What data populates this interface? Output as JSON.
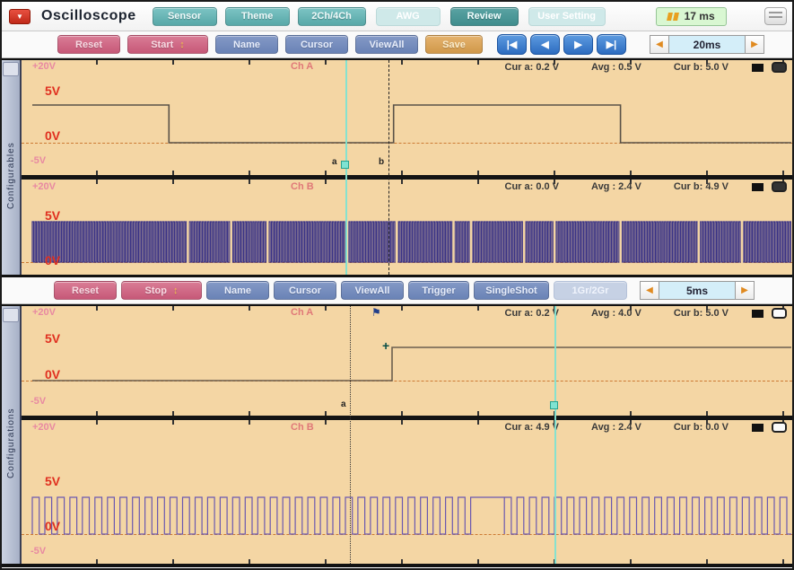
{
  "window": {
    "title": "Oscilloscope"
  },
  "icons": {
    "app_menu": "▼",
    "spinner": "↕",
    "media_first": "|◀",
    "media_prev": "◀",
    "media_next": "▶",
    "media_last": "▶|",
    "tb_left": "◀",
    "tb_right": "▶",
    "trigger_flag": "⚑",
    "trigger_cross": "+"
  },
  "toolbar_top": {
    "buttons": [
      {
        "label": "Sensor",
        "state": "normal"
      },
      {
        "label": "Theme",
        "state": "normal"
      },
      {
        "label": "2Ch/4Ch",
        "state": "normal"
      },
      {
        "label": "AWG",
        "state": "disabled"
      },
      {
        "label": "Review",
        "state": "selected"
      },
      {
        "label": "User Setting",
        "state": "disabled"
      }
    ],
    "acq_time": "17 ms"
  },
  "toolbar_scope1": {
    "buttons": [
      {
        "label": "Reset",
        "style": "pink"
      },
      {
        "label": "Start",
        "style": "pink",
        "spinner": true
      },
      {
        "label": "Name",
        "style": "blue"
      },
      {
        "label": "Cursor",
        "style": "blue"
      },
      {
        "label": "ViewAll",
        "style": "blue"
      },
      {
        "label": "Save",
        "style": "orange"
      }
    ],
    "timebase": "20ms"
  },
  "toolbar_scope2": {
    "buttons": [
      {
        "label": "Reset",
        "style": "pink"
      },
      {
        "label": "Stop",
        "style": "pink",
        "spinner": true
      },
      {
        "label": "Name",
        "style": "blue"
      },
      {
        "label": "Cursor",
        "style": "blue"
      },
      {
        "label": "ViewAll",
        "style": "blue"
      },
      {
        "label": "Trigger",
        "style": "blue"
      },
      {
        "label": "SingleShot",
        "style": "blue"
      },
      {
        "label": "1Gr/2Gr",
        "style": "disabled"
      }
    ],
    "timebase": "5ms"
  },
  "scope1": {
    "sidebar_label": "Configurables",
    "chA": {
      "name": "Ch A",
      "v_top": "+20V",
      "v5": "5V",
      "v0": "0V",
      "v_neg": "-5V",
      "cur_a": "Cur a: 0.2 V",
      "avg": "Avg : 0.5 V",
      "cur_b": "Cur b: 5.0 V"
    },
    "chB": {
      "name": "Ch B",
      "v_top": "+20V",
      "v5": "5V",
      "v0": "0V",
      "cur_a": "Cur a: 0.0 V",
      "avg": "Avg : 2.4 V",
      "cur_b": "Cur b: 4.9 V"
    },
    "cursor_a_label": "a",
    "cursor_b_label": "b"
  },
  "scope2": {
    "sidebar_label": "Configurations",
    "chA": {
      "name": "Ch A",
      "v_top": "+20V",
      "v5": "5V",
      "v0": "0V",
      "v_neg": "-5V",
      "cur_a": "Cur a: 0.2 V",
      "avg": "Avg : 4.0 V",
      "cur_b": "Cur b: 5.0 V"
    },
    "chB": {
      "name": "Ch B",
      "v_top": "+20V",
      "v5": "5V",
      "v0": "0V",
      "v_neg": "-5V",
      "cur_a": "Cur a: 4.9 V",
      "avg": "Avg : 2.4 V",
      "cur_b": "Cur b: 0.0 V"
    },
    "cursor_a_label": "a"
  },
  "colors": {
    "plot_bg": "#f4d6a4",
    "teal_cursor": "#7fe3d2",
    "accent_pink": "#cb5f7f",
    "accent_blue": "#6e87ba",
    "accent_teal": "#58a8a8",
    "accent_orange": "#d0984a",
    "badge_bg": "#d9f7d2",
    "wave_chA": "#5a5248",
    "wave_chB": "#3a3386"
  },
  "chart_data": [
    {
      "panel": 1,
      "channel": "Ch A",
      "type": "square",
      "unit": "V",
      "timebase": "20ms",
      "v_high": 5,
      "v_low": 0,
      "edges": [
        {
          "t": 0.0,
          "v": 5
        },
        {
          "t": 0.18,
          "v": 0
        },
        {
          "t": 0.476,
          "v": 5
        },
        {
          "t": 0.775,
          "v": 0
        }
      ],
      "cursors": {
        "a_frac": 0.415,
        "b_frac": 0.472,
        "a_val": 0.2,
        "b_val": 5.0
      },
      "avg": 0.5,
      "color": "#5a5248"
    },
    {
      "panel": 1,
      "channel": "Ch B",
      "type": "pwm",
      "unit": "V",
      "timebase": "20ms",
      "v_high": 5,
      "v_low": 0,
      "period_frac": 0.0035,
      "duty": 0.5,
      "dropouts": [
        0.205,
        0.262,
        0.31,
        0.415,
        0.48,
        0.555,
        0.578,
        0.648,
        0.688,
        0.775,
        0.878,
        0.935
      ],
      "cursors": {
        "a_val": 0.0,
        "b_val": 4.9
      },
      "avg": 2.4,
      "color": "#3a3386"
    },
    {
      "panel": 2,
      "channel": "Ch A",
      "type": "square",
      "unit": "V",
      "timebase": "5ms",
      "v_high": 5,
      "v_low": 0,
      "edges": [
        {
          "t": 0.0,
          "v": 0
        },
        {
          "t": 0.474,
          "v": 5
        }
      ],
      "cursors": {
        "a_frac": 0.421,
        "b_frac": 0.69,
        "a_val": 0.2,
        "b_val": 5.0
      },
      "avg": 4.0,
      "color": "#6b5f4e"
    },
    {
      "panel": 2,
      "channel": "Ch B",
      "type": "pwm",
      "unit": "V",
      "timebase": "5ms",
      "v_high": 5,
      "v_low": 0,
      "period_frac": 0.0165,
      "duty": 0.55,
      "pause": {
        "from": 0.572,
        "to": 0.622,
        "level": 5
      },
      "cursors": {
        "a_val": 4.9,
        "b_val": 0.0
      },
      "avg": 2.4,
      "color": "#6a58b0"
    }
  ]
}
